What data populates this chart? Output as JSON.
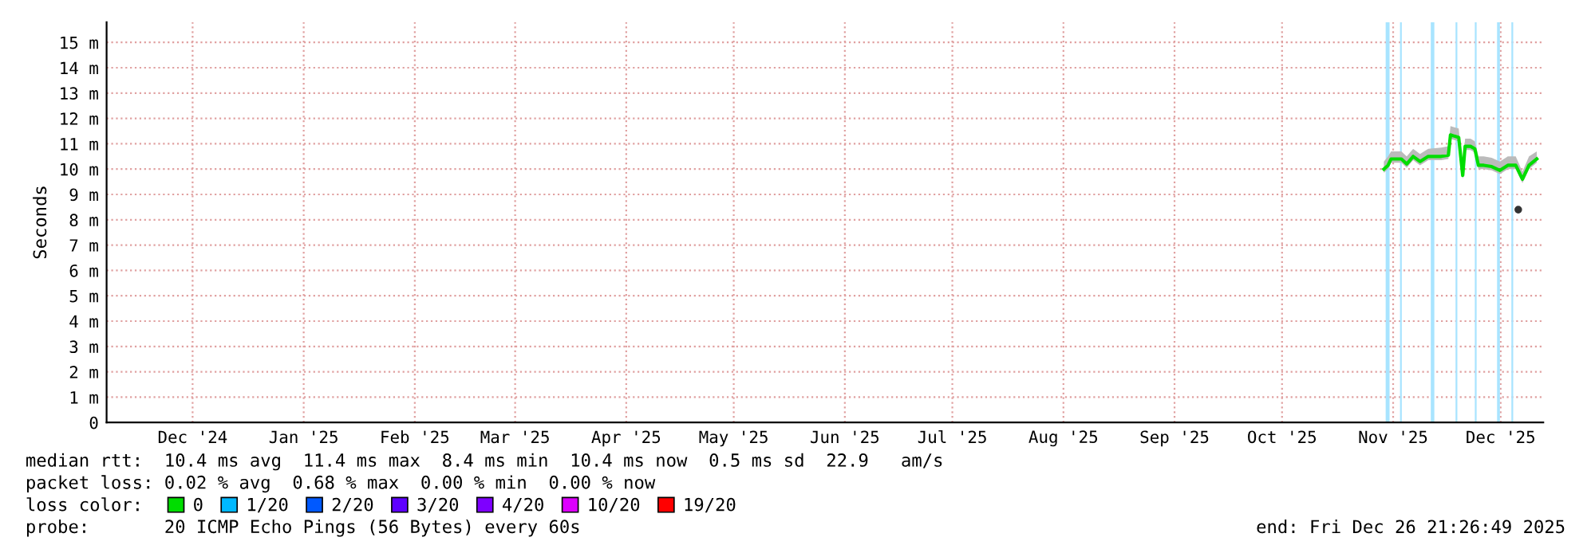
{
  "chart_data": {
    "type": "line",
    "ylabel": "Seconds",
    "xlim": [
      "2024-11-21",
      "2025-12-26T21:26"
    ],
    "xticks": [
      {
        "value": "2024-12-15",
        "label": "Dec '24"
      },
      {
        "value": "2025-01-15",
        "label": "Jan '25"
      },
      {
        "value": "2025-02-15",
        "label": "Feb '25"
      },
      {
        "value": "2025-03-15",
        "label": "Mar '25"
      },
      {
        "value": "2025-04-15",
        "label": "Apr '25"
      },
      {
        "value": "2025-05-15",
        "label": "May '25"
      },
      {
        "value": "2025-06-15",
        "label": "Jun '25"
      },
      {
        "value": "2025-07-15",
        "label": "Jul '25"
      },
      {
        "value": "2025-08-15",
        "label": "Aug '25"
      },
      {
        "value": "2025-09-15",
        "label": "Sep '25"
      },
      {
        "value": "2025-10-15",
        "label": "Oct '25"
      },
      {
        "value": "2025-11-15",
        "label": "Nov '25"
      },
      {
        "value": "2025-12-15",
        "label": "Dec '25"
      }
    ],
    "ylim": [
      0,
      15.8
    ],
    "yticks": [
      0,
      {
        "value": 1,
        "label": "1 m"
      },
      {
        "value": 2,
        "label": "2 m"
      },
      {
        "value": 3,
        "label": "3 m"
      },
      {
        "value": 4,
        "label": "4 m"
      },
      {
        "value": 5,
        "label": "5 m"
      },
      {
        "value": 6,
        "label": "6 m"
      },
      {
        "value": 7,
        "label": "7 m"
      },
      {
        "value": 8,
        "label": "8 m"
      },
      {
        "value": 9,
        "label": "9 m"
      },
      {
        "value": 10,
        "label": "10 m"
      },
      {
        "value": 11,
        "label": "11 m"
      },
      {
        "value": 12,
        "label": "12 m"
      },
      {
        "value": 13,
        "label": "13 m"
      },
      {
        "value": 14,
        "label": "14 m"
      },
      {
        "value": 15,
        "label": "15 m"
      }
    ],
    "grid": true,
    "legend": "bottom",
    "series": [
      {
        "name": "0",
        "color": "#00dd00",
        "x": [
          "2025-11-12T10:00",
          "2025-11-13T14:00",
          "2025-11-14T10:00",
          "2025-11-17T07:00",
          "2025-11-18T19:00",
          "2025-11-20T14:00",
          "2025-11-22T12:00",
          "2025-11-24T19:00",
          "2025-11-28T10:00",
          "2025-11-30T10:00",
          "2025-12-01T00:00",
          "2025-12-02T02:00",
          "2025-12-03T07:00",
          "2025-12-04T10:00",
          "2025-12-05T02:00",
          "2025-12-06T14:00",
          "2025-12-07T19:00",
          "2025-12-08T19:00",
          "2025-12-10T07:00",
          "2025-12-12T12:00",
          "2025-12-14T19:00",
          "2025-12-17T00:00",
          "2025-12-19T05:00",
          "2025-12-21T02:00",
          "2025-12-22T22:00",
          "2025-12-25T02:00"
        ],
        "values": [
          10.0,
          10.15,
          10.4,
          10.4,
          10.2,
          10.5,
          10.3,
          10.5,
          10.5,
          10.55,
          11.35,
          11.3,
          11.25,
          9.75,
          10.9,
          10.9,
          10.8,
          10.15,
          10.15,
          10.1,
          9.95,
          10.15,
          10.15,
          9.6,
          10.15,
          10.4
        ],
        "lower": [
          9.85,
          10.0,
          10.25,
          10.25,
          10.05,
          10.35,
          10.15,
          10.35,
          10.35,
          10.4,
          11.2,
          11.15,
          11.1,
          9.6,
          10.75,
          10.75,
          10.65,
          10.0,
          10.0,
          9.95,
          9.8,
          10.0,
          10.0,
          9.45,
          10.0,
          10.25
        ],
        "upper": [
          10.3,
          10.5,
          10.7,
          10.7,
          10.5,
          10.8,
          10.6,
          10.8,
          10.85,
          10.9,
          11.7,
          11.65,
          11.6,
          10.1,
          11.2,
          11.2,
          11.1,
          10.5,
          10.5,
          10.45,
          10.3,
          10.5,
          10.5,
          9.9,
          10.5,
          10.7
        ]
      },
      {
        "type": "scatter",
        "color": "#333333",
        "marker": "circle",
        "x": [
          "2025-12-19T22:00"
        ],
        "values": [
          8.4
        ]
      },
      {
        "name": "1/20",
        "color": "#00b8ff"
      },
      {
        "name": "2/20",
        "color": "#0059ff"
      },
      {
        "name": "3/20",
        "color": "#5e00ff"
      },
      {
        "name": "4/20",
        "color": "#7e00ff"
      },
      {
        "name": "10/20",
        "color": "#dd00ff"
      },
      {
        "name": "19/20",
        "color": "#ff0000"
      }
    ],
    "bands": [
      {
        "axis": "x",
        "from": "2025-11-12T22:00",
        "to": "2025-11-14T00:00",
        "color": "#a8e4ff"
      },
      {
        "axis": "x",
        "from": "2025-11-16T22:00",
        "to": "2025-11-17T10:00",
        "color": "#a8e4ff"
      },
      {
        "axis": "x",
        "from": "2025-11-25T12:00",
        "to": "2025-11-26T12:00",
        "color": "#a8e4ff"
      },
      {
        "axis": "x",
        "from": "2025-12-02T10:00",
        "to": "2025-12-02T22:00",
        "color": "#a8e4ff"
      },
      {
        "axis": "x",
        "from": "2025-12-07T19:00",
        "to": "2025-12-08T07:00",
        "color": "#a8e4ff"
      },
      {
        "axis": "x",
        "from": "2025-12-14T00:00",
        "to": "2025-12-14T19:00",
        "color": "#a8e4ff"
      },
      {
        "axis": "x",
        "from": "2025-12-18T00:00",
        "to": "2025-12-18T12:00",
        "color": "#a8e4ff"
      }
    ],
    "annotations": [
      "median rtt:  10.4 ms avg  11.4 ms max  8.4 ms min  10.4 ms now  0.5 ms sd  22.9   am/s",
      "packet loss: 0.02 % avg  0.68 % max  0.00 % min  0.00 % now",
      "loss color:",
      "probe:       20 ICMP Echo Pings (56 Bytes) every 60s",
      "end: Fri Dec 26 21:26:49 2025"
    ]
  }
}
